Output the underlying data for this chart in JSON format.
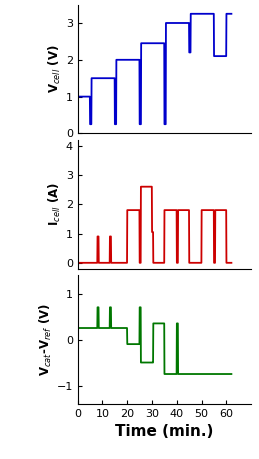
{
  "xlabel": "Time (min.)",
  "xlim": [
    0,
    70
  ],
  "xticks": [
    0,
    10,
    20,
    30,
    40,
    50,
    60
  ],
  "panel1": {
    "ylabel": "V$_{cell}$ (V)",
    "ylim": [
      0,
      3.5
    ],
    "yticks": [
      0,
      1,
      2,
      3
    ],
    "color": "#0000cc",
    "data_t": [
      0,
      4.9,
      5.0,
      5.5,
      5.6,
      9.9,
      10.0,
      14.9,
      15.0,
      15.5,
      15.6,
      19.9,
      20.0,
      24.9,
      25.0,
      25.5,
      25.6,
      29.9,
      30.0,
      34.9,
      35.0,
      35.5,
      35.6,
      39.9,
      40.0,
      44.9,
      45.0,
      45.5,
      45.6,
      49.9,
      50.0,
      54.9,
      55.0,
      59.9,
      60.0,
      62
    ],
    "data_v": [
      1.0,
      1.0,
      0.25,
      0.25,
      1.5,
      1.5,
      1.5,
      1.5,
      0.25,
      0.25,
      2.0,
      2.0,
      2.0,
      2.0,
      0.25,
      0.25,
      2.45,
      2.45,
      2.45,
      2.45,
      0.25,
      0.25,
      3.0,
      3.0,
      3.0,
      3.0,
      2.2,
      2.2,
      3.25,
      3.25,
      3.25,
      3.25,
      2.1,
      2.1,
      3.25,
      3.25
    ]
  },
  "panel2": {
    "ylabel": "I$_{cell}$ (A)",
    "ylim": [
      -0.2,
      4.2
    ],
    "yticks": [
      0,
      1,
      2,
      3,
      4
    ],
    "color": "#cc0000",
    "data_t": [
      0,
      7.9,
      8.0,
      8.4,
      8.5,
      12.9,
      13.0,
      13.4,
      13.5,
      19.9,
      20.0,
      24.9,
      25.0,
      25.4,
      25.5,
      29.9,
      30.0,
      30.4,
      30.5,
      34.9,
      35.0,
      39.9,
      40.0,
      40.4,
      40.5,
      44.9,
      45.0,
      49.9,
      50.0,
      54.9,
      55.0,
      55.4,
      55.5,
      59.9,
      60.0,
      62
    ],
    "data_v": [
      0.0,
      0.0,
      0.9,
      0.9,
      0.0,
      0.0,
      0.9,
      0.9,
      0.0,
      0.0,
      1.8,
      1.8,
      0.0,
      0.0,
      2.6,
      2.6,
      1.05,
      1.05,
      0.0,
      0.0,
      1.8,
      1.8,
      0.0,
      0.0,
      1.8,
      1.8,
      0.0,
      0.0,
      1.8,
      1.8,
      0.0,
      0.0,
      1.8,
      1.8,
      0.0,
      0.0
    ]
  },
  "panel3": {
    "ylabel": "V$_{cat}$-V$_{ref}$ (V)",
    "ylim": [
      -1.4,
      1.4
    ],
    "yticks": [
      -1,
      0,
      1
    ],
    "color": "#007700",
    "data_t": [
      0,
      7.9,
      8.0,
      8.4,
      8.5,
      12.9,
      13.0,
      13.4,
      13.5,
      19.9,
      20.0,
      24.9,
      25.0,
      25.4,
      25.5,
      29.9,
      30.0,
      30.4,
      30.5,
      34.9,
      35.0,
      39.9,
      40.0,
      40.4,
      40.5,
      44.9,
      45.0,
      62
    ],
    "data_v": [
      0.25,
      0.25,
      0.7,
      0.7,
      0.25,
      0.25,
      0.7,
      0.7,
      0.25,
      0.25,
      -0.1,
      -0.1,
      0.7,
      0.7,
      -0.5,
      -0.5,
      -0.5,
      -0.5,
      0.35,
      0.35,
      -0.75,
      -0.75,
      0.35,
      0.35,
      -0.75,
      -0.75,
      -0.75,
      -0.75
    ]
  },
  "linewidth": 1.3,
  "tick_fontsize": 8,
  "label_fontsize": 8.5,
  "xlabel_fontsize": 11
}
